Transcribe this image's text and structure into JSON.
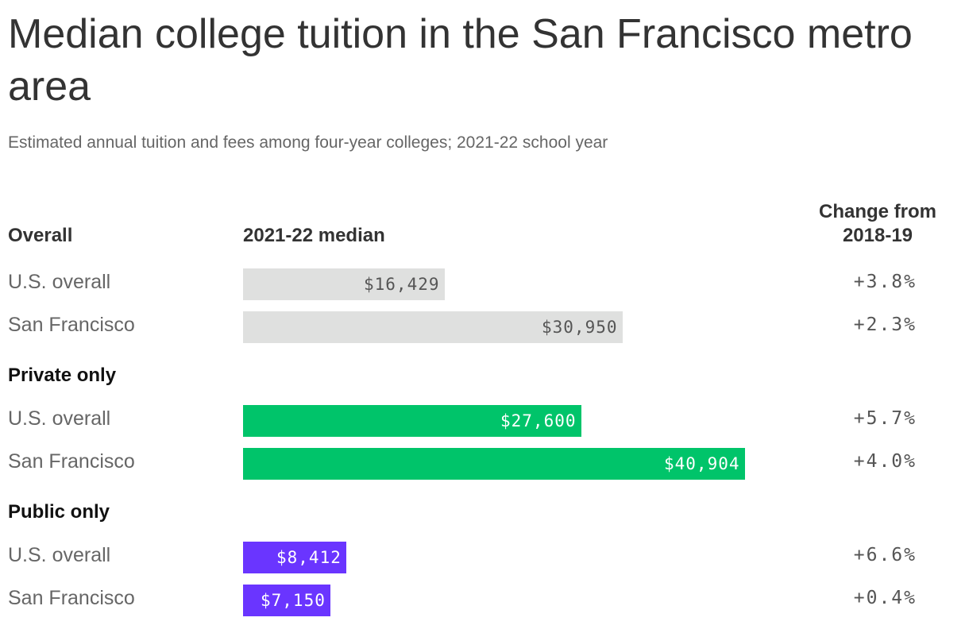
{
  "title": "Median college tuition in the San Francisco metro area",
  "subtitle": "Estimated annual tuition and fees among four-year colleges; 2021-22 school year",
  "headers": {
    "overall": "Overall",
    "median": "2021-22 median",
    "change": "Change from 2018-19"
  },
  "groups": {
    "private": "Private only",
    "public": "Public only"
  },
  "rows": {
    "us_overall": "U.S. overall",
    "sf": "San Francisco"
  },
  "colors": {
    "overall": "#dfe0df",
    "private": "#00c46a",
    "public": "#6a35ff"
  },
  "chart_data": {
    "type": "bar",
    "orientation": "horizontal",
    "xlim": [
      0,
      40904
    ],
    "groups": [
      {
        "name": "Overall",
        "color": "#dfe0df",
        "rows": [
          {
            "label": "U.S. overall",
            "value": 16429,
            "value_label": "$16,429",
            "change": "+3.8%"
          },
          {
            "label": "San Francisco",
            "value": 30950,
            "value_label": "$30,950",
            "change": "+2.3%"
          }
        ]
      },
      {
        "name": "Private only",
        "color": "#00c46a",
        "rows": [
          {
            "label": "U.S. overall",
            "value": 27600,
            "value_label": "$27,600",
            "change": "+5.7%"
          },
          {
            "label": "San Francisco",
            "value": 40904,
            "value_label": "$40,904",
            "change": "+4.0%"
          }
        ]
      },
      {
        "name": "Public only",
        "color": "#6a35ff",
        "rows": [
          {
            "label": "U.S. overall",
            "value": 8412,
            "value_label": "$8,412",
            "change": "+6.6%"
          },
          {
            "label": "San Francisco",
            "value": 7150,
            "value_label": "$7,150",
            "change": "+0.4%"
          }
        ]
      }
    ]
  }
}
